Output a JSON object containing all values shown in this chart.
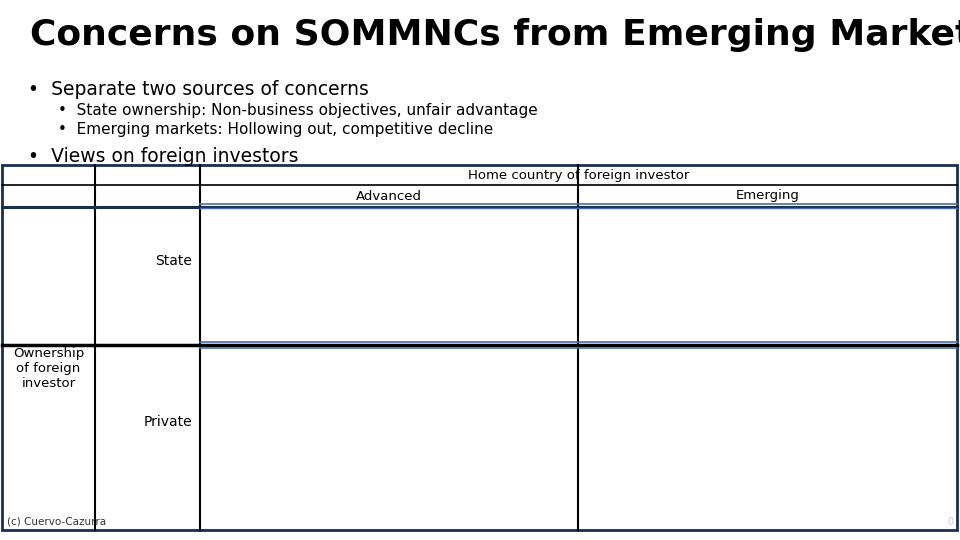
{
  "title": "Concerns on SOMMNCs from Emerging Markets",
  "bg_color": "#ffffff",
  "title_color": "#000000",
  "title_fontsize": 26,
  "bullet1_text": "Separate two sources of concerns",
  "sub_bullet1": "State ownership: Non-business objectives, unfair advantage",
  "sub_bullet2": "Emerging markets: Hollowing out, competitive decline",
  "bullet2_text": "Views on foreign investors",
  "table_header_row1": "Home country of foreign investor",
  "table_header_col1": "Advanced",
  "table_header_col2": "Emerging",
  "row_label1": "State",
  "row_label2": "Private",
  "col_left_label": "Ownership\nof foreign\ninvestor",
  "footer": "(c) Cuervo-Cazurra",
  "border_dark": "#1a2e50",
  "border_mid": "#000000",
  "border_light": "#4a6fa5"
}
